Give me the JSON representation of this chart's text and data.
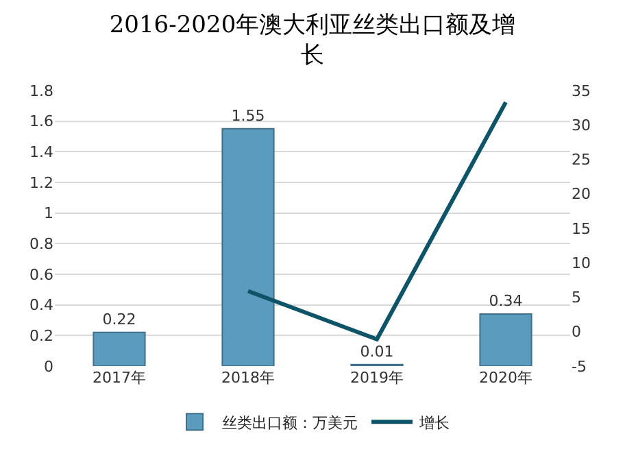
{
  "chart_data": {
    "type": "bar",
    "title": "2016-2020年澳大利亚丝类出口额及增长",
    "categories": [
      "2017年",
      "2018年",
      "2019年",
      "2020年"
    ],
    "series": [
      {
        "name": "丝类出口额：万美元",
        "color": "#5b9bbd",
        "values": [
          0.22,
          1.55,
          0.01,
          0.34
        ],
        "value_labels": [
          "0.22",
          "1.55",
          "0.01",
          "0.34"
        ]
      },
      {
        "name": "增长",
        "type": "line",
        "axis": "y2",
        "color": "#0e5468",
        "values": [
          null,
          5.9,
          -1.1,
          33.3
        ]
      }
    ],
    "ylim": [
      0,
      1.8
    ],
    "yticks": [
      {
        "value": 0,
        "label": "0"
      },
      0.2,
      0.4,
      0.6,
      0.8,
      {
        "value": 1,
        "label": "1"
      },
      1.2,
      1.4,
      1.6,
      1.8
    ],
    "y2lim": [
      -5,
      35
    ],
    "y2ticks": [
      -5,
      0,
      5,
      10,
      15,
      20,
      25,
      30,
      35
    ],
    "grid": "y",
    "legend": "bottom",
    "marker": "none"
  }
}
